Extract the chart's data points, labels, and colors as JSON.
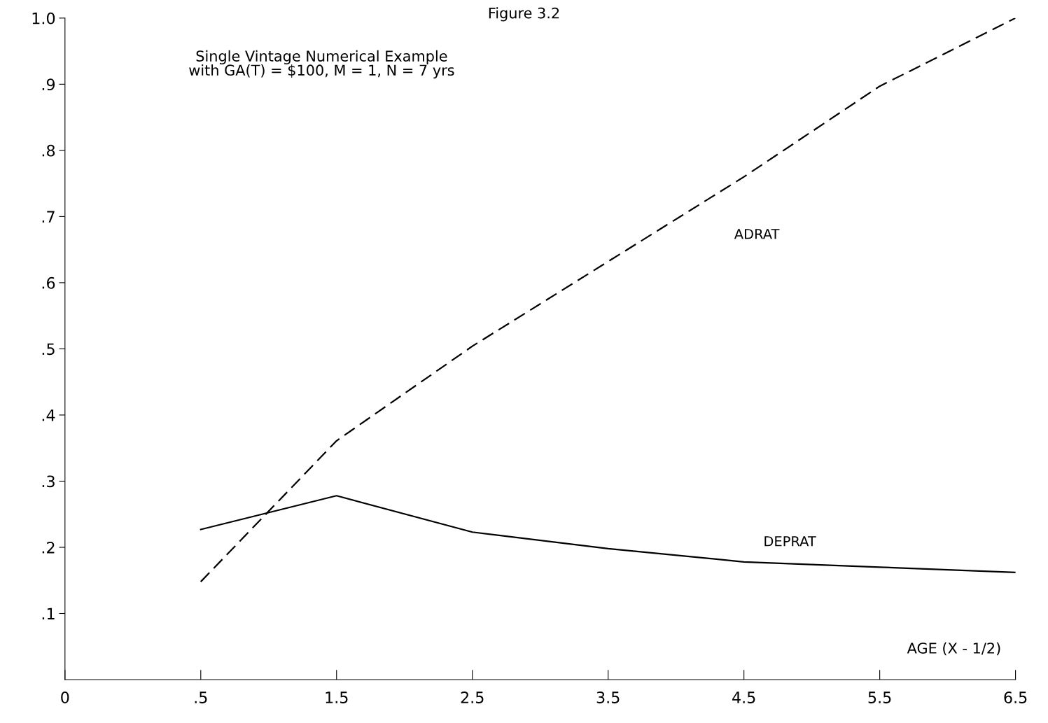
{
  "chart_data": {
    "type": "line",
    "title": "Figure 3.2",
    "subtitle": "Single Vintage Numerical Example\nwith GA(T) = $100, M = 1, N = 7 yrs",
    "xlabel": "AGE (X - 1/2)",
    "categories": [
      "0",
      ".5",
      "1.5",
      "2.5",
      "3.5",
      "4.5",
      "5.5",
      "6.5"
    ],
    "series": [
      {
        "name": "ADRAT",
        "color": "#000000",
        "line_style": "dashed",
        "values": [
          null,
          0.148,
          0.361,
          0.504,
          0.632,
          0.76,
          0.897,
          1.0
        ]
      },
      {
        "name": "DEPRAT",
        "color": "#000000",
        "line_style": "solid",
        "values": [
          null,
          0.227,
          0.278,
          0.223,
          0.198,
          0.178,
          0.17,
          0.162
        ]
      }
    ],
    "ylim": [
      0,
      1.0
    ],
    "yticks": [
      {
        "value": 0.1,
        "label": ".1"
      },
      {
        "value": 0.2,
        "label": ".2"
      },
      {
        "value": 0.3,
        "label": ".3"
      },
      {
        "value": 0.4,
        "label": ".4"
      },
      {
        "value": 0.5,
        "label": ".5"
      },
      {
        "value": 0.6,
        "label": ".6"
      },
      {
        "value": 0.7,
        "label": ".7"
      },
      {
        "value": 0.8,
        "label": ".8"
      },
      {
        "value": 0.9,
        "label": ".9"
      },
      {
        "value": 1.0,
        "label": "1.0"
      }
    ],
    "grid": false,
    "legend": false,
    "marker": "none"
  }
}
